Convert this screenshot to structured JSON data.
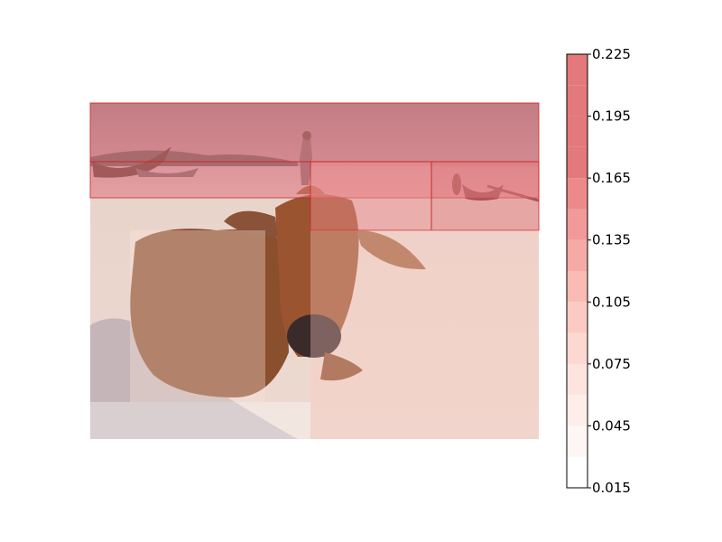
{
  "chart_data": {
    "type": "heatmap",
    "background_image": "photo of a brown cow lying on a sandy beach with boats and a person in the background",
    "colormap": "Reds",
    "colorbar": {
      "min": 0.015,
      "max": 0.225,
      "levels": [
        0.015,
        0.03,
        0.045,
        0.06,
        0.075,
        0.09,
        0.105,
        0.12,
        0.135,
        0.15,
        0.165,
        0.18,
        0.195,
        0.21,
        0.225
      ],
      "tick_labels": [
        "0.015",
        "0.045",
        "0.075",
        "0.105",
        "0.135",
        "0.165",
        "0.195",
        "0.225"
      ],
      "colors": [
        "#ffffff",
        "#fef6f4",
        "#feeeea",
        "#fde4de",
        "#fcd8d0",
        "#fbcbc3",
        "#f9bbb4",
        "#f6aaa6",
        "#f29a99",
        "#ec8a8b",
        "#e3797c"
      ],
      "outline_color": "#000000"
    },
    "regions": [
      {
        "label": "top band",
        "value": 0.225
      },
      {
        "label": "upper strip",
        "value": 0.21
      },
      {
        "label": "right box",
        "value": 0.205
      },
      {
        "label": "cow head box",
        "value": 0.16
      },
      {
        "label": "left cow body",
        "value": 0.06
      },
      {
        "label": "right sand",
        "value": 0.09
      },
      {
        "label": "lower left",
        "value": 0.02
      }
    ]
  }
}
